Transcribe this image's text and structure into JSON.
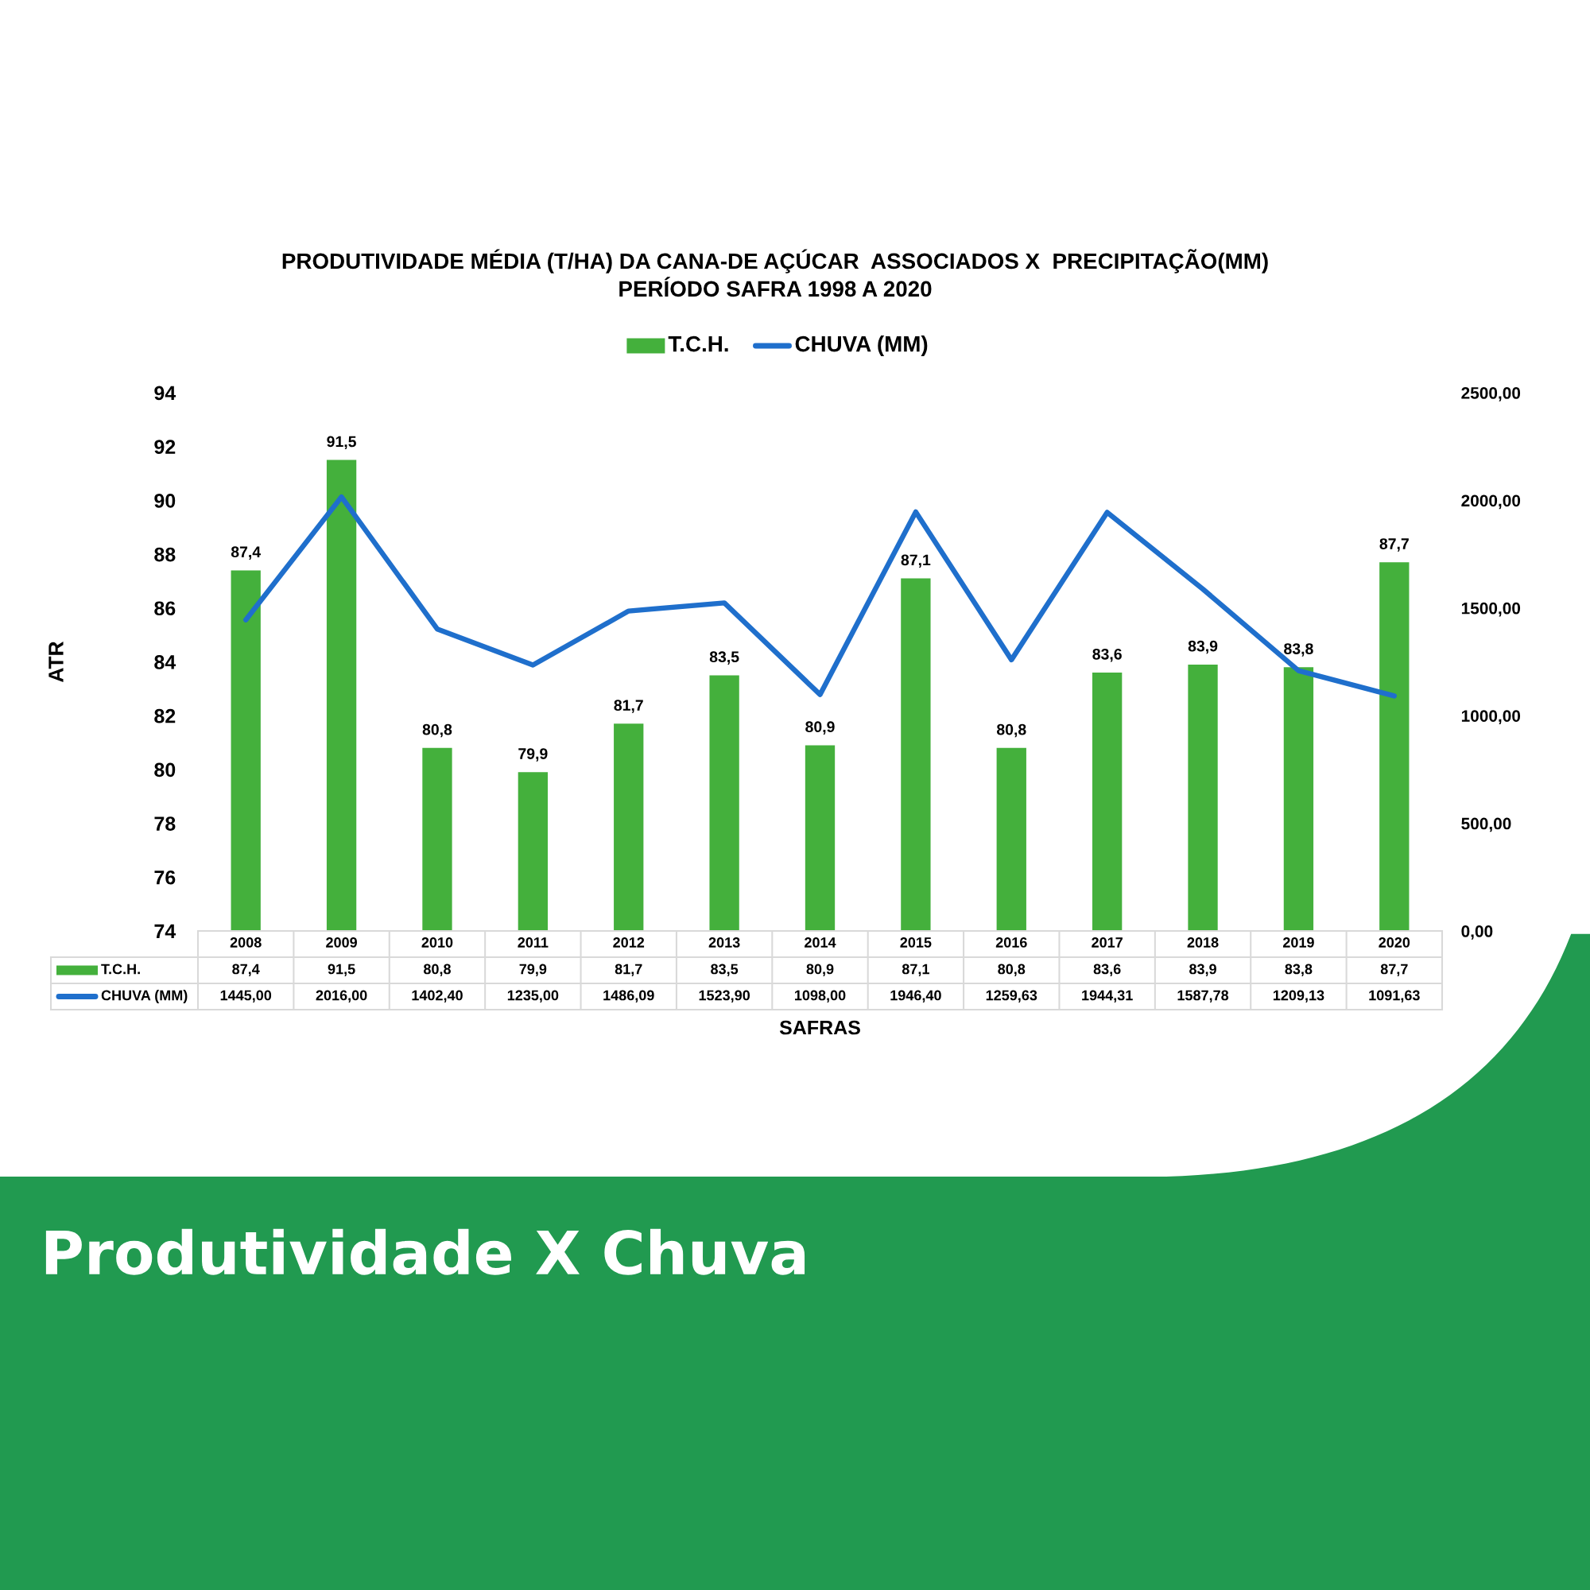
{
  "chart_data": {
    "type": "bar",
    "title": "PRODUTIVIDADE MÉDIA (T/HA) DA CANA-DE AÇÚCAR  ASSOCIADOS X  PRECIPITAÇÃO(MM)\nPERÍODO SAFRA 1998 A 2020",
    "xlabel": "SAFRAS",
    "ylabel": "ATR",
    "categories": [
      "2008",
      "2009",
      "2010",
      "2011",
      "2012",
      "2013",
      "2014",
      "2015",
      "2016",
      "2017",
      "2018",
      "2019",
      "2020"
    ],
    "series": [
      {
        "name": "T.C.H.",
        "color": "#44b03c",
        "values": [
          87.4,
          91.5,
          80.8,
          79.9,
          81.7,
          83.5,
          80.9,
          87.1,
          80.8,
          83.6,
          83.9,
          83.8,
          87.7
        ],
        "value_labels": [
          "87,4",
          "91,5",
          "80,8",
          "79,9",
          "81,7",
          "83,5",
          "80,9",
          "87,1",
          "80,8",
          "83,6",
          "83,9",
          "83,8",
          "87,7"
        ]
      },
      {
        "name": "CHUVA (MM)",
        "type": "line",
        "axis": "y2",
        "color": "#1f6fcc",
        "values": [
          1445.0,
          2016.0,
          1402.4,
          1235.0,
          1486.09,
          1523.9,
          1098.0,
          1946.4,
          1259.63,
          1944.31,
          1587.78,
          1209.13,
          1091.63
        ],
        "value_labels": [
          "1445,00",
          "2016,00",
          "1402,40",
          "1235,00",
          "1486,09",
          "1523,90",
          "1098,00",
          "1946,40",
          "1259,63",
          "1944,31",
          "1587,78",
          "1209,13",
          "1091,63"
        ]
      }
    ],
    "ylim": [
      74,
      94
    ],
    "yticks": [
      74,
      76,
      78,
      80,
      82,
      84,
      86,
      88,
      90,
      92,
      94
    ],
    "y2lim": [
      0,
      2500
    ],
    "y2ticks": [
      {
        "value": 0,
        "label": "0,00"
      },
      {
        "value": 500,
        "label": "500,00"
      },
      {
        "value": 1000,
        "label": "1000,00"
      },
      {
        "value": 1500,
        "label": "1500,00"
      },
      {
        "value": 2000,
        "label": "2000,00"
      },
      {
        "value": 2500,
        "label": "2500,00"
      }
    ],
    "grid": false,
    "legend": "top",
    "line_style": "solid",
    "annotations": [
      "Produtividade X Chuva"
    ]
  }
}
